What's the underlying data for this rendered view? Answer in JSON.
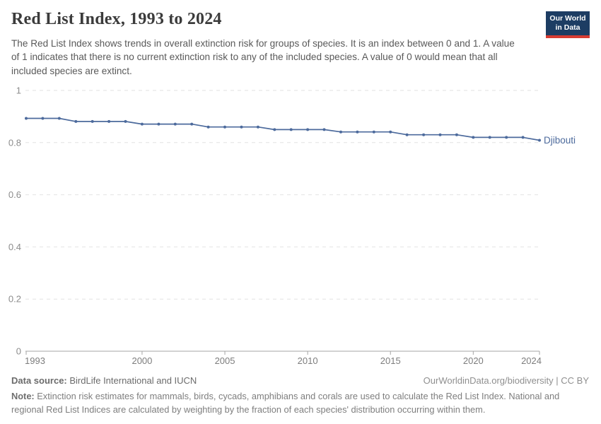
{
  "header": {
    "title": "Red List Index, 1993 to 2024",
    "subtitle": "The Red List Index shows trends in overall extinction risk for groups of species. It is an index between 0 and 1. A value of 1 indicates that there is no current extinction risk to any of the included species. A value of 0 would mean that all included species are extinct.",
    "logo": {
      "line1": "Our World",
      "line2": "in Data",
      "bg_color": "#1d3d63",
      "stripe_color": "#d73c32"
    }
  },
  "chart_data": {
    "type": "line",
    "title": "Red List Index, 1993 to 2024",
    "xlabel": "",
    "ylabel": "",
    "xlim": [
      1993,
      2024
    ],
    "ylim": [
      0,
      1
    ],
    "grid": "horizontal-dashed",
    "legend_position": "end-of-line-label",
    "x_ticks": [
      1993,
      2000,
      2005,
      2010,
      2015,
      2020,
      2024
    ],
    "x_tick_labels": [
      "1993",
      "2000",
      "2005",
      "2010",
      "2015",
      "2020",
      "2024"
    ],
    "y_ticks": [
      1,
      0.8,
      0.6,
      0.4,
      0.2,
      0
    ],
    "y_tick_labels": [
      "1",
      "0.8",
      "0.6",
      "0.4",
      "0.2",
      "0"
    ],
    "series": [
      {
        "name": "Djibouti",
        "color": "#4c6a9c",
        "x": [
          1993,
          1994,
          1995,
          1996,
          1997,
          1998,
          1999,
          2000,
          2001,
          2002,
          2003,
          2004,
          2005,
          2006,
          2007,
          2008,
          2009,
          2010,
          2011,
          2012,
          2013,
          2014,
          2015,
          2016,
          2017,
          2018,
          2019,
          2020,
          2021,
          2022,
          2023,
          2024
        ],
        "values": [
          0.893,
          0.893,
          0.893,
          0.881,
          0.881,
          0.881,
          0.881,
          0.871,
          0.871,
          0.871,
          0.871,
          0.86,
          0.86,
          0.86,
          0.86,
          0.85,
          0.85,
          0.85,
          0.85,
          0.841,
          0.841,
          0.841,
          0.841,
          0.83,
          0.83,
          0.83,
          0.83,
          0.82,
          0.82,
          0.82,
          0.82,
          0.809
        ]
      }
    ],
    "colors": {
      "gridline": "#e2e2e2",
      "axis": "#a5a5a5",
      "y_tick_label": "#8c8c8c",
      "x_tick_label": "#7d7d7d"
    }
  },
  "footer": {
    "datasource_label": "Data source:",
    "datasource_value": "BirdLife International and IUCN",
    "link": "OurWorldinData.org/biodiversity | CC BY",
    "note_label": "Note:",
    "note_value": "Extinction risk estimates for mammals, birds, cycads, amphibians and corals are used to calculate the Red List Index. National and regional Red List Indices are calculated by weighting by the fraction of each species' distribution occurring within them."
  }
}
